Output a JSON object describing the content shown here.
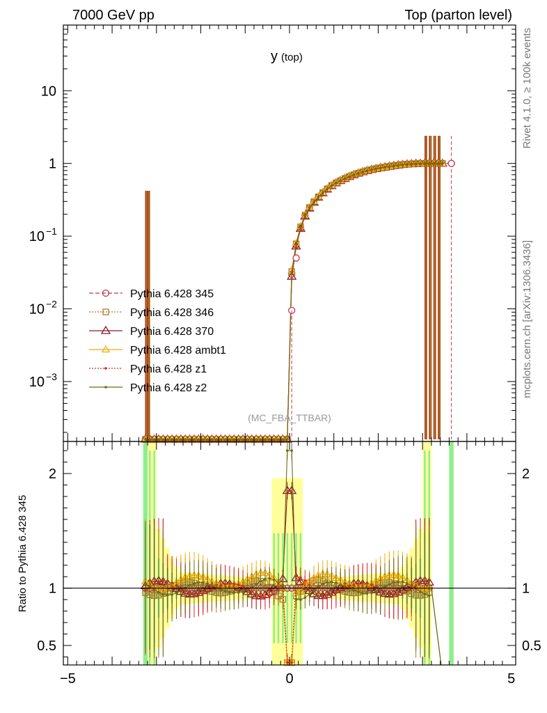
{
  "header": {
    "left": "7000 GeV pp",
    "right": "Top (parton level)"
  },
  "side_text": {
    "rivet": "Rivet 4.1.0, ≥ 100k events",
    "mcplots": "mcplots.cern.ch [arXiv:1306.3436]"
  },
  "watermark": "(MC_FBA_TTBAR)",
  "colors": {
    "345": "#c0394f",
    "346": "#a67c2c",
    "370": "#8b1a2b",
    "ambt1": "#f2a900",
    "z1": "#d62828",
    "z2": "#6b6b12",
    "band_inner": "#90ee90",
    "band_outer": "#ffff99"
  },
  "chart_data": [
    {
      "type": "line",
      "title": "y (top)",
      "title_main": "y",
      "title_sub": "(top)",
      "yscale": "log",
      "xlim": [
        -5.1,
        5.1
      ],
      "ylim": [
        0.00015,
        80
      ],
      "yticks": [
        {
          "value": 10,
          "label": "10"
        },
        {
          "value": 1,
          "label": "1"
        },
        {
          "value": 0.1,
          "label": "10",
          "exp": "−1"
        },
        {
          "value": 0.01,
          "label": "10",
          "exp": "−2"
        },
        {
          "value": 0.001,
          "label": "10",
          "exp": "−3"
        }
      ],
      "legend_position": "left-middle",
      "series": [
        {
          "name": "Pythia 6.428 345",
          "key": "345",
          "marker": "circle-open",
          "dash": "6,3"
        },
        {
          "name": "Pythia 6.428 346",
          "key": "346",
          "marker": "square-open",
          "dash": "2,2"
        },
        {
          "name": "Pythia 6.428 370",
          "key": "370",
          "marker": "triangle-open",
          "dash": ""
        },
        {
          "name": "Pythia 6.428 ambt1",
          "key": "ambt1",
          "marker": "triangle-open-small",
          "dash": ""
        },
        {
          "name": "Pythia 6.428 z1",
          "key": "z1",
          "marker": "dot",
          "dash": "2,2"
        },
        {
          "name": "Pythia 6.428 z2",
          "key": "z2",
          "marker": "dot",
          "dash": ""
        }
      ],
      "curve_x": [
        0.0,
        0.05,
        0.1,
        0.15,
        0.2,
        0.25,
        0.3,
        0.35,
        0.4,
        0.5,
        0.6,
        0.7,
        0.8,
        0.9,
        1.0,
        1.2,
        1.4,
        1.6,
        1.8,
        2.0,
        2.2,
        2.4,
        2.6,
        2.8,
        3.0,
        3.2,
        3.4,
        3.65
      ],
      "curve_y": [
        0.012,
        0.03,
        0.05,
        0.075,
        0.1,
        0.13,
        0.16,
        0.19,
        0.22,
        0.27,
        0.32,
        0.37,
        0.42,
        0.47,
        0.52,
        0.6,
        0.68,
        0.75,
        0.81,
        0.86,
        0.9,
        0.94,
        0.97,
        0.99,
        1.0,
        1.0,
        1.0,
        1.0
      ],
      "floor_range": [
        -3.3,
        0.0
      ]
    },
    {
      "type": "line",
      "ylabel": "Ratio to Pythia 6.428 345",
      "xlim": [
        -5.1,
        5.1
      ],
      "ylim": [
        0.33,
        2.28
      ],
      "yticks": [
        {
          "value": 2,
          "label": "2"
        },
        {
          "value": 1,
          "label": "1"
        },
        {
          "value": 0.5,
          "label": "0.5"
        }
      ],
      "xticks": [
        {
          "value": -5,
          "label": "−5"
        },
        {
          "value": 0,
          "label": "0"
        },
        {
          "value": 5,
          "label": "5"
        }
      ],
      "reference": 1
    }
  ]
}
